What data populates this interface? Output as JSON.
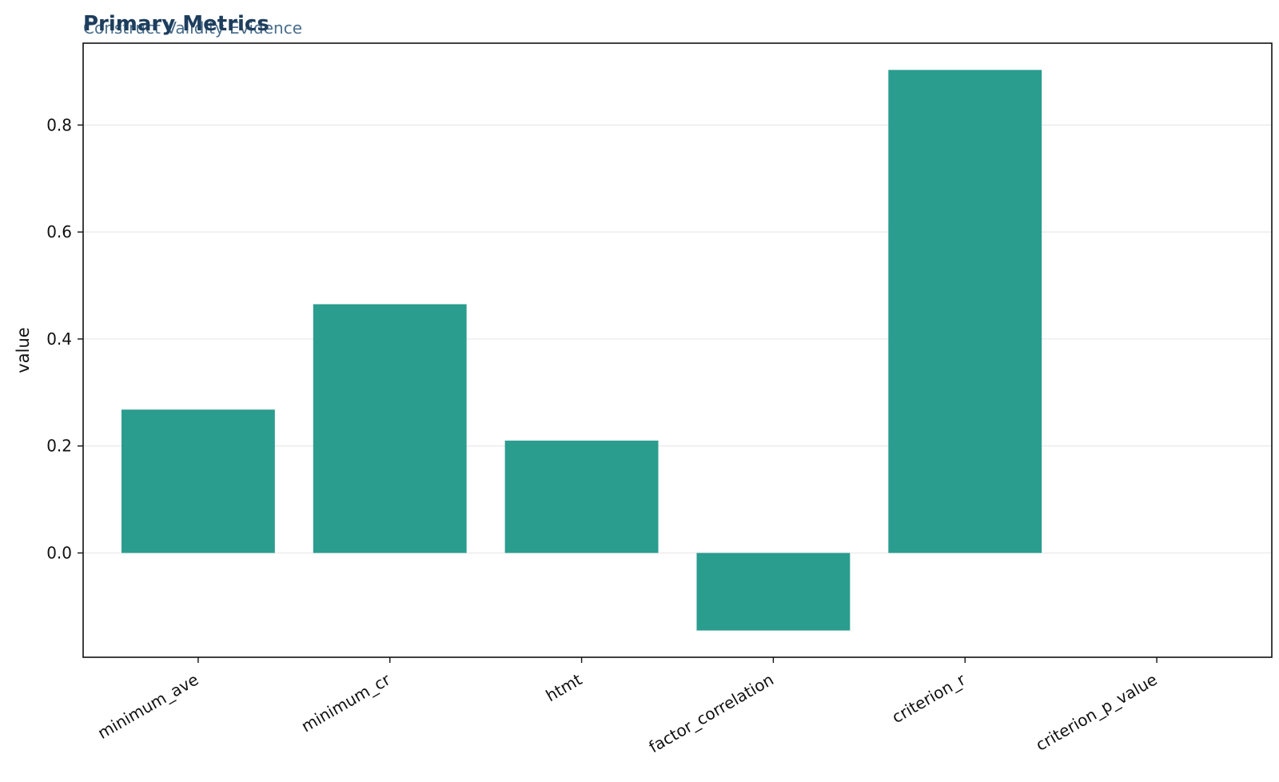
{
  "colors": {
    "bar": "#2a9d8f",
    "title": "#1d3d5c",
    "subtitle": "#4a6d8c",
    "grid": "#e8e8e8",
    "axis": "#111111"
  },
  "chart_data": {
    "type": "bar",
    "title": "Primary Metrics",
    "subtitle": "Construct Validity Evidence",
    "xlabel": "",
    "ylabel": "value",
    "categories": [
      "minimum_ave",
      "minimum_cr",
      "htmt",
      "factor_correlation",
      "criterion_r",
      "criterion_p_value"
    ],
    "values": [
      0.268,
      0.465,
      0.21,
      -0.145,
      0.903,
      0.0
    ],
    "ylim": [
      -0.195,
      0.953
    ],
    "yticks": [
      0.0,
      0.2,
      0.4,
      0.6,
      0.8
    ],
    "ytick_labels": [
      "0.0",
      "0.2",
      "0.4",
      "0.6",
      "0.8"
    ],
    "grid": "horizontal",
    "legend": "none"
  }
}
